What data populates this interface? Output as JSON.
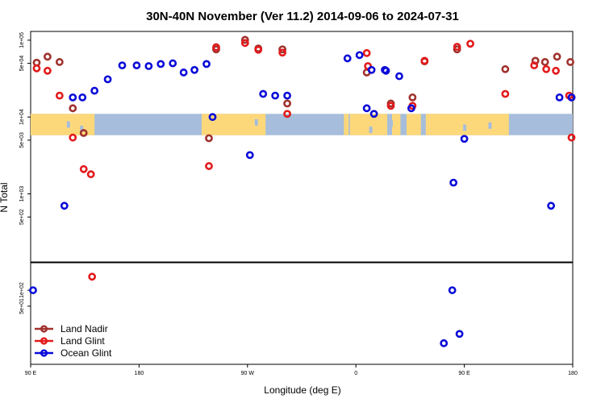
{
  "chart_data": {
    "type": "scatter",
    "title": "30N-40N November (Ver 11.2)   2014-09-06 to 2024-07-31",
    "xlabel": "Longitude (deg E)",
    "ylabel": "N Total",
    "x_ticks": [
      {
        "value": 90,
        "label": "90 E"
      },
      {
        "value": 180,
        "label": "180"
      },
      {
        "value": 270,
        "label": "90 W"
      },
      {
        "value": 360,
        "label": "0"
      },
      {
        "value": 450,
        "label": "90 E"
      },
      {
        "value": 540,
        "label": "180"
      }
    ],
    "xlim": [
      90,
      540
    ],
    "upper_panel": {
      "yscale": "log",
      "ylim": [
        130,
        130000
      ],
      "y_ticks": [
        {
          "value": 100000,
          "label": "1e+05"
        },
        {
          "value": 50000,
          "label": "5e+04"
        },
        {
          "value": 10000,
          "label": "1e+04"
        },
        {
          "value": 5000,
          "label": "5e+03"
        },
        {
          "value": 1000,
          "label": "1e+03"
        },
        {
          "value": 500,
          "label": "5e+02"
        }
      ],
      "land_ocean_strip": {
        "lower": 5800,
        "upper": 11000
      }
    },
    "lower_panel": {
      "yscale": "log",
      "ylim": [
        4,
        330
      ],
      "y_ticks": [
        {
          "value": 100,
          "label": "1e+02"
        },
        {
          "value": 50,
          "label": "5e+01"
        }
      ]
    },
    "series": [
      {
        "name": "Land Nadir",
        "color": "#a0322d",
        "upper": [
          [
            95,
            51000
          ],
          [
            104,
            61000
          ],
          [
            114,
            52000
          ],
          [
            125,
            13000
          ],
          [
            134,
            6200
          ],
          [
            238,
            5300
          ],
          [
            244,
            76000
          ],
          [
            268,
            101000
          ],
          [
            279,
            78000
          ],
          [
            299,
            76000
          ],
          [
            303,
            15000
          ],
          [
            369,
            38000
          ],
          [
            389,
            15000
          ],
          [
            407,
            18000
          ],
          [
            417,
            53000
          ],
          [
            444,
            76000
          ],
          [
            484,
            42000
          ],
          [
            509,
            54000
          ],
          [
            517,
            52000
          ],
          [
            527,
            61000
          ],
          [
            538,
            52000
          ],
          [
            539,
            18000
          ]
        ],
        "lower": []
      },
      {
        "name": "Land Glint",
        "color": "#e21a1c",
        "upper": [
          [
            95,
            43000
          ],
          [
            104,
            40000
          ],
          [
            114,
            19000
          ],
          [
            125,
            5400
          ],
          [
            134,
            2100
          ],
          [
            140,
            1800
          ],
          [
            238,
            2300
          ],
          [
            244,
            81000
          ],
          [
            268,
            92000
          ],
          [
            279,
            75000
          ],
          [
            299,
            69000
          ],
          [
            303,
            11000
          ],
          [
            369,
            68000
          ],
          [
            370,
            46000
          ],
          [
            389,
            14000
          ],
          [
            407,
            14000
          ],
          [
            417,
            54000
          ],
          [
            444,
            82000
          ],
          [
            455,
            90000
          ],
          [
            484,
            20000
          ],
          [
            508,
            47000
          ],
          [
            518,
            42000
          ],
          [
            526,
            40000
          ],
          [
            537,
            19000
          ],
          [
            539,
            5400
          ]
        ],
        "lower": [
          [
            141,
            180
          ]
        ]
      },
      {
        "name": "Ocean Glint",
        "color": "#0b0bd8",
        "upper": [
          [
            118,
            700
          ],
          [
            125,
            18000
          ],
          [
            133,
            18000
          ],
          [
            143,
            22000
          ],
          [
            154,
            31000
          ],
          [
            166,
            47000
          ],
          [
            178,
            47000
          ],
          [
            188,
            46000
          ],
          [
            198,
            49000
          ],
          [
            208,
            50000
          ],
          [
            217,
            38000
          ],
          [
            226,
            41000
          ],
          [
            236,
            49000
          ],
          [
            241,
            10000
          ],
          [
            272,
            3200
          ],
          [
            283,
            20000
          ],
          [
            293,
            19000
          ],
          [
            303,
            19000
          ],
          [
            353,
            58000
          ],
          [
            363,
            64000
          ],
          [
            373,
            41000
          ],
          [
            385,
            40000
          ],
          [
            369,
            13000
          ],
          [
            375,
            11000
          ],
          [
            384,
            41000
          ],
          [
            396,
            34000
          ],
          [
            406,
            13000
          ],
          [
            441,
            1400
          ],
          [
            450,
            5200
          ],
          [
            522,
            700
          ],
          [
            529,
            18000
          ],
          [
            539,
            18000
          ]
        ],
        "lower": [
          [
            92,
            100
          ],
          [
            433,
            10
          ],
          [
            440,
            100
          ],
          [
            446,
            15
          ]
        ]
      }
    ],
    "legend": {
      "placement": "bottom-left",
      "entries": [
        "Land Nadir",
        "Land Glint",
        "Ocean Glint"
      ]
    }
  }
}
